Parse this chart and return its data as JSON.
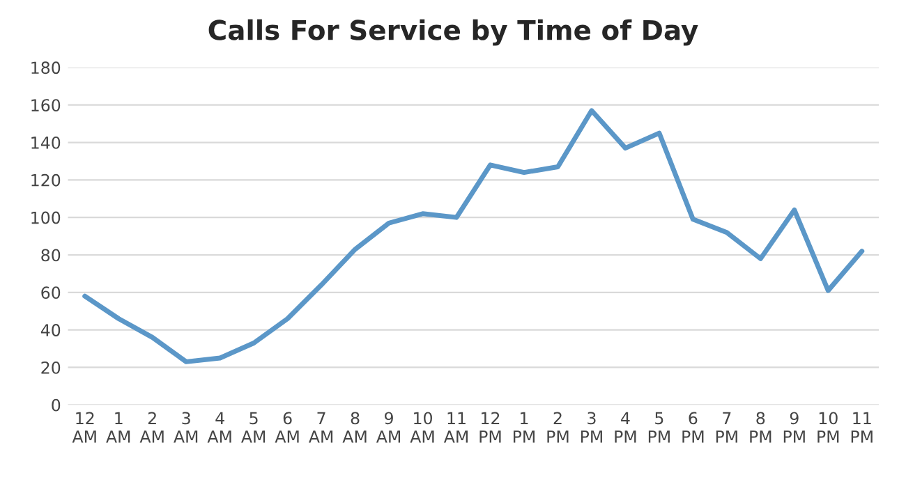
{
  "chart_data": {
    "type": "line",
    "title": "Calls For Service by Time of Day",
    "categories": [
      "12\nAM",
      "1\nAM",
      "2\nAM",
      "3\nAM",
      "4\nAM",
      "5\nAM",
      "6\nAM",
      "7\nAM",
      "8\nAM",
      "9\nAM",
      "10\nAM",
      "11\nAM",
      "12\nPM",
      "1\nPM",
      "2\nPM",
      "3\nPM",
      "4\nPM",
      "5\nPM",
      "6\nPM",
      "7\nPM",
      "8\nPM",
      "9\nPM",
      "10\nPM",
      "11\nPM"
    ],
    "series": [
      {
        "color": "#5b97c8",
        "values": [
          58,
          46,
          36,
          23,
          25,
          33,
          46,
          64,
          83,
          97,
          102,
          100,
          128,
          124,
          127,
          157,
          137,
          145,
          99,
          92,
          78,
          104,
          61,
          82
        ]
      }
    ],
    "ylim": [
      0,
      180
    ],
    "yticks": [
      0,
      20,
      40,
      60,
      80,
      100,
      120,
      140,
      160,
      180
    ],
    "grid": "y",
    "legend": false,
    "marker": "none",
    "line_style": "solid"
  }
}
